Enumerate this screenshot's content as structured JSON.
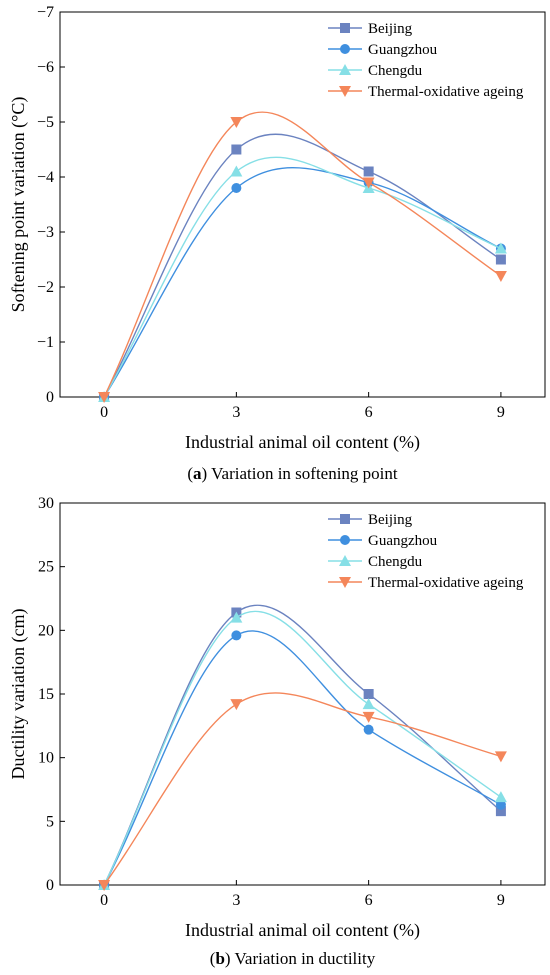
{
  "chart_data": [
    {
      "type": "line",
      "caption_letter": "a",
      "caption_text": "Variation in softening point",
      "xlabel": "Industrial animal oil content (%)",
      "ylabel": "Softening point variation (°C)",
      "x": [
        0,
        3,
        6,
        9
      ],
      "xlim": [
        -1,
        10
      ],
      "xticks": [
        "0",
        "3",
        "6",
        "9"
      ],
      "ylim": [
        0,
        -7
      ],
      "yticks": [
        0,
        -1,
        -2,
        -3,
        -4,
        -5,
        -6,
        -7
      ],
      "ytick_labels": [
        "0",
        "−1",
        "−2",
        "−3",
        "−4",
        "−5",
        "−6",
        "−7"
      ],
      "grid": false,
      "legend_position": "top-right",
      "series": [
        {
          "name": "Beijing",
          "marker": "square",
          "color": "#6b83c0",
          "values": [
            0,
            -4.5,
            -4.1,
            -2.5
          ]
        },
        {
          "name": "Guangzhou",
          "marker": "circle",
          "color": "#3f8fdf",
          "values": [
            0,
            -3.8,
            -3.9,
            -2.7
          ]
        },
        {
          "name": "Chengdu",
          "marker": "triangle-up",
          "color": "#86dfe6",
          "values": [
            0,
            -4.1,
            -3.8,
            -2.7
          ]
        },
        {
          "name": "Thermal-oxidative ageing",
          "marker": "triangle-down",
          "color": "#f4865a",
          "values": [
            0,
            -5.0,
            -3.9,
            -2.2
          ]
        }
      ]
    },
    {
      "type": "line",
      "caption_letter": "b",
      "caption_text": "Variation in ductility",
      "xlabel": "Industrial animal oil content (%)",
      "ylabel": "Ductility variation (cm)",
      "x": [
        0,
        3,
        6,
        9
      ],
      "xlim": [
        -1,
        10
      ],
      "xticks": [
        "0",
        "3",
        "6",
        "9"
      ],
      "ylim": [
        0,
        30
      ],
      "yticks": [
        0,
        5,
        10,
        15,
        20,
        25,
        30
      ],
      "ytick_labels": [
        "0",
        "5",
        "10",
        "15",
        "20",
        "25",
        "30"
      ],
      "grid": false,
      "legend_position": "top-right",
      "series": [
        {
          "name": "Beijing",
          "marker": "square",
          "color": "#6b83c0",
          "values": [
            0,
            21.4,
            15.0,
            5.8
          ]
        },
        {
          "name": "Guangzhou",
          "marker": "circle",
          "color": "#3f8fdf",
          "values": [
            0,
            19.6,
            12.2,
            6.3
          ]
        },
        {
          "name": "Chengdu",
          "marker": "triangle-up",
          "color": "#86dfe6",
          "values": [
            0,
            21.0,
            14.2,
            6.9
          ]
        },
        {
          "name": "Thermal-oxidative ageing",
          "marker": "triangle-down",
          "color": "#f4865a",
          "values": [
            0,
            14.2,
            13.2,
            10.1
          ]
        }
      ]
    }
  ]
}
